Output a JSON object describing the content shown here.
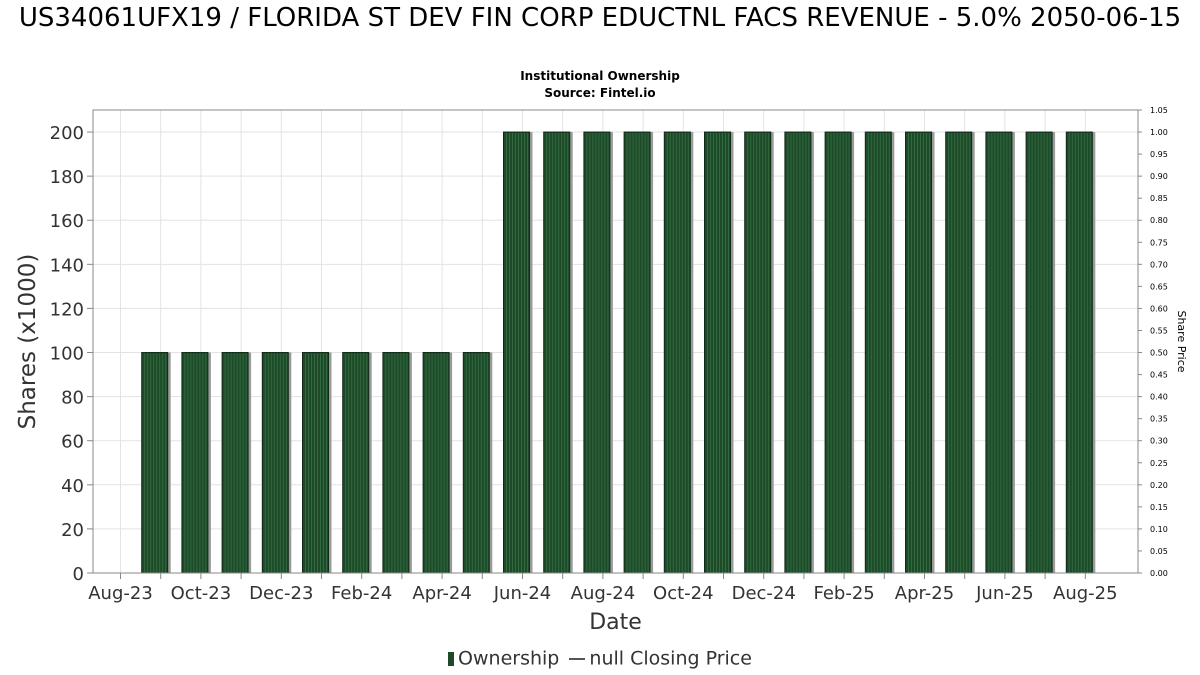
{
  "chart_data": {
    "type": "bar",
    "title": "US34061UFX19 / FLORIDA ST DEV FIN CORP EDUCTNL FACS REVENUE - 5.0% 2050-06-15",
    "subtitle": "Institutional Ownership",
    "source": "Source: Fintel.io",
    "xlabel": "Date",
    "ylabel": "Shares (x1000)",
    "y2label": "Share Price",
    "ylim": [
      0,
      210
    ],
    "y2lim": [
      0,
      1.05
    ],
    "yticks": [
      "0",
      "20",
      "40",
      "60",
      "80",
      "100",
      "120",
      "140",
      "160",
      "180",
      "200"
    ],
    "y2ticks": [
      "0.00",
      "0.05",
      "0.10",
      "0.15",
      "0.20",
      "0.25",
      "0.30",
      "0.35",
      "0.40",
      "0.45",
      "0.50",
      "0.55",
      "0.60",
      "0.65",
      "0.70",
      "0.75",
      "0.80",
      "0.85",
      "0.90",
      "0.95",
      "1.00",
      "1.05"
    ],
    "xticks": [
      "Aug-23",
      "Oct-23",
      "Dec-23",
      "Feb-24",
      "Apr-24",
      "Jun-24",
      "Aug-24",
      "Oct-24",
      "Dec-24",
      "Feb-25",
      "Apr-25",
      "Jun-25",
      "Aug-25"
    ],
    "series": [
      {
        "name": "Ownership",
        "color": "#1e4a2a",
        "values": [
          100,
          100,
          100,
          100,
          100,
          100,
          100,
          100,
          100,
          200,
          200,
          200,
          200,
          200,
          200,
          200,
          200,
          200,
          200,
          200,
          200,
          200,
          200,
          200
        ]
      },
      {
        "name": "null Closing Price",
        "color": "#555555",
        "values": []
      }
    ],
    "grid": true,
    "legend_position": "bottom"
  }
}
